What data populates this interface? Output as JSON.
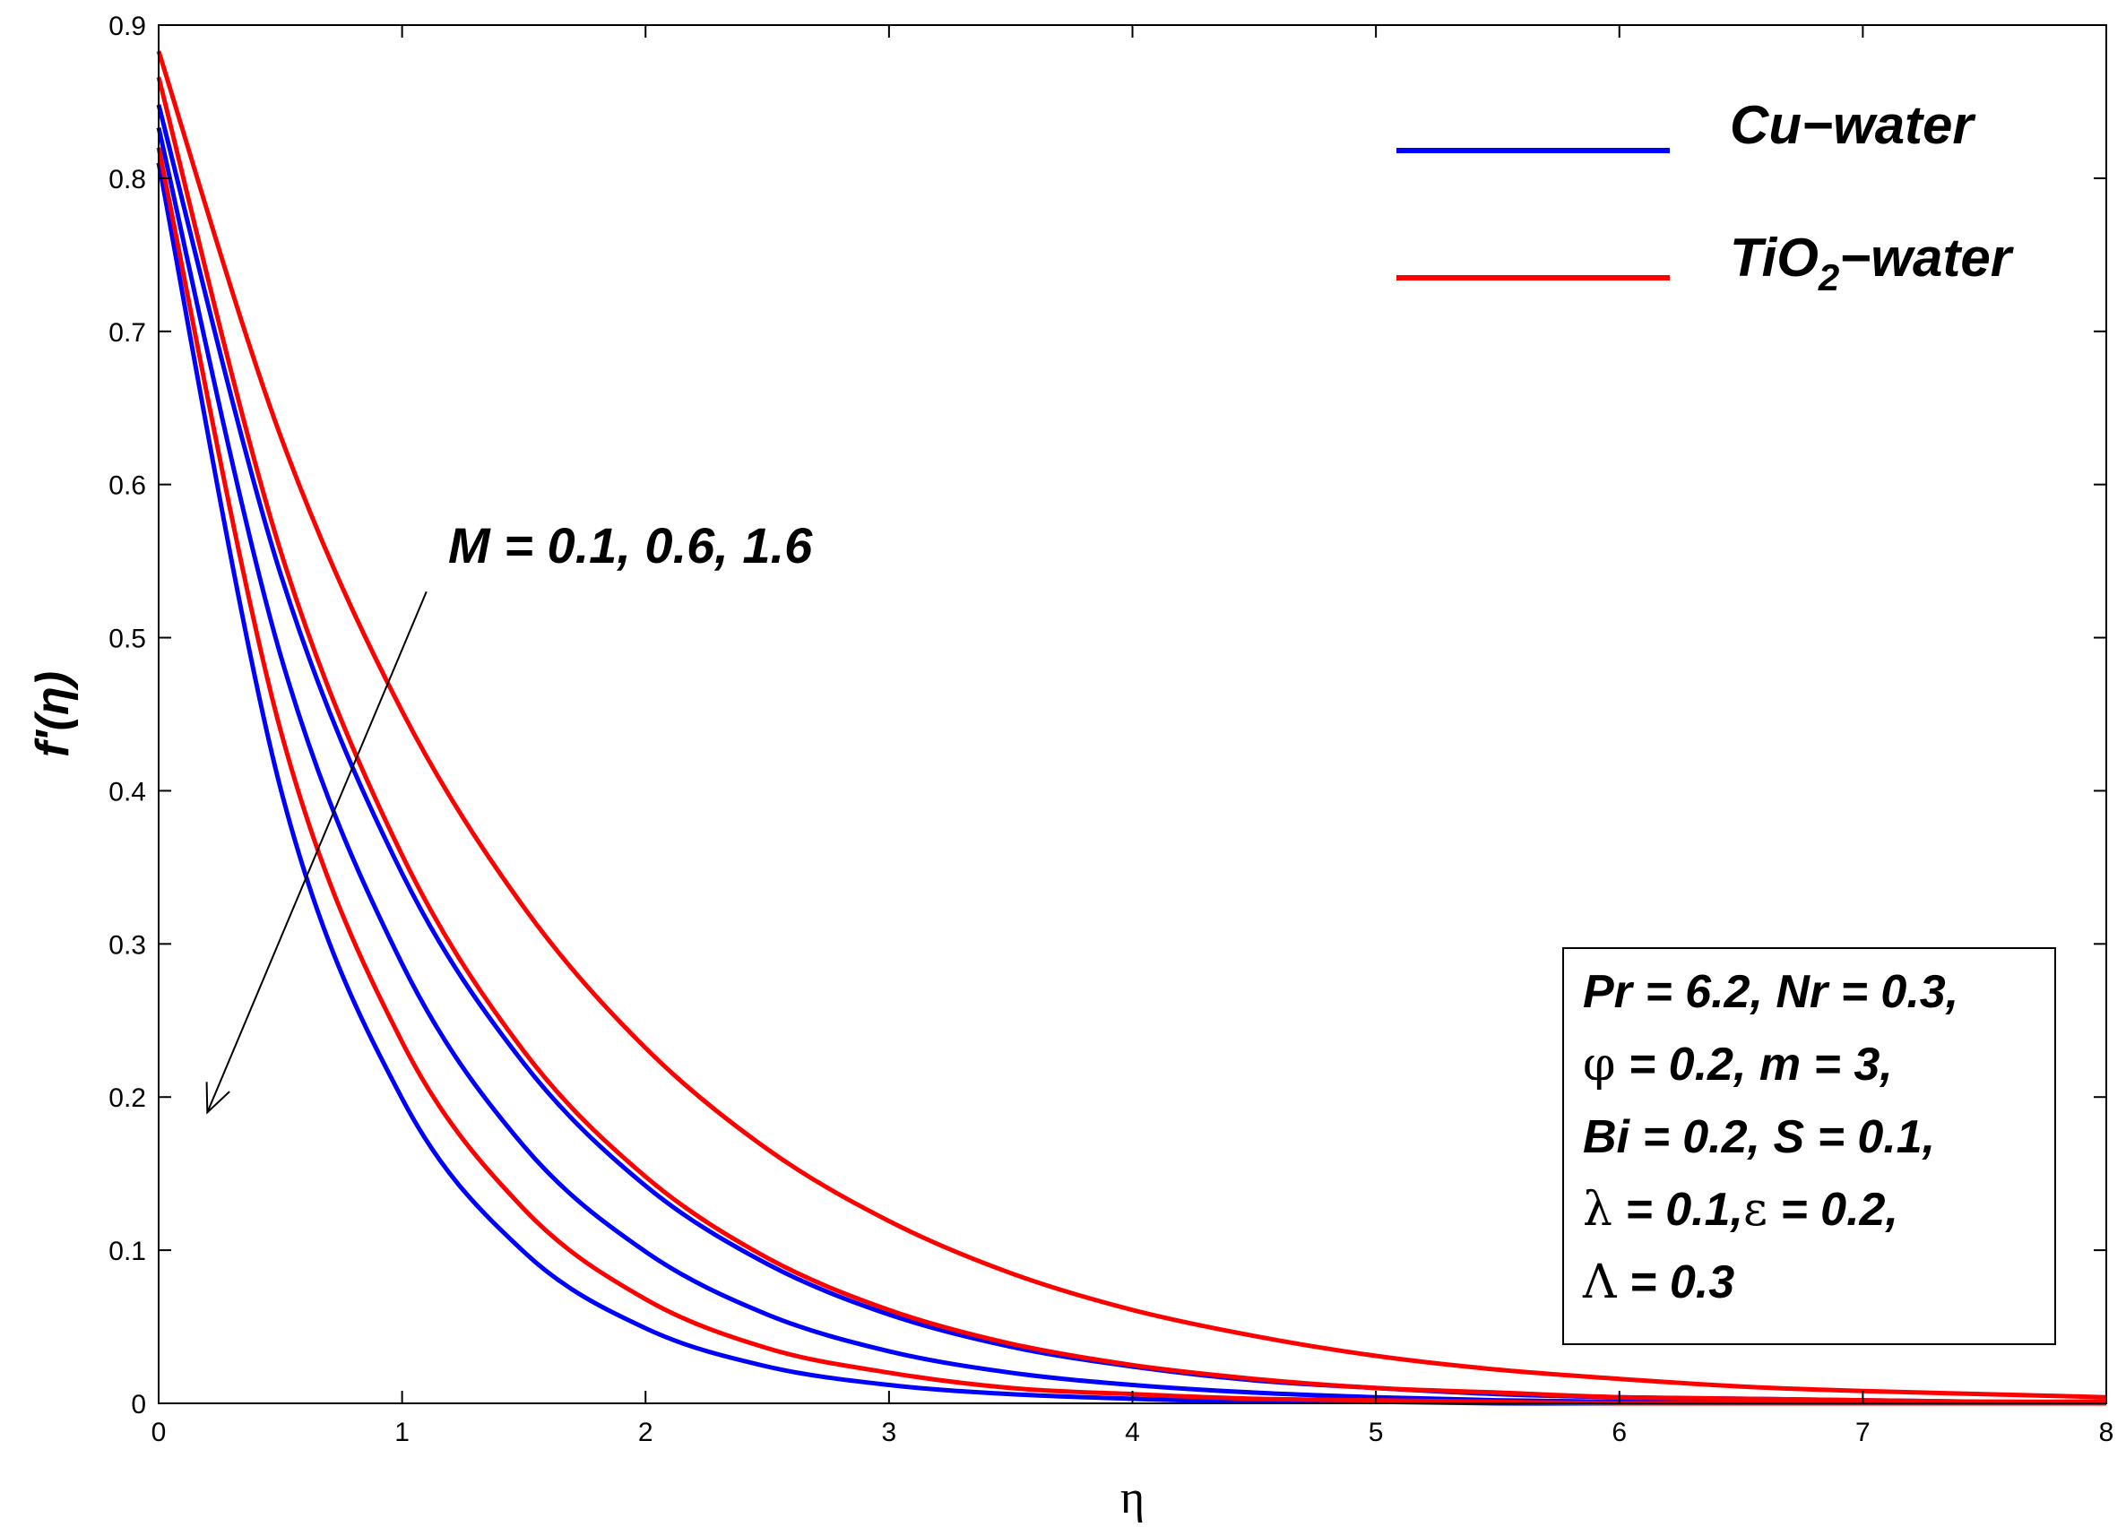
{
  "chart_data": {
    "type": "line",
    "xlabel": "η",
    "ylabel": "f'(η)",
    "xlim": [
      0,
      8
    ],
    "ylim": [
      0,
      0.9
    ],
    "x_ticks": [
      "0",
      "1",
      "2",
      "3",
      "4",
      "5",
      "6",
      "7",
      "8"
    ],
    "y_ticks": [
      "0",
      "0.1",
      "0.2",
      "0.3",
      "0.4",
      "0.5",
      "0.6",
      "0.7",
      "0.8",
      "0.9"
    ],
    "x": [
      0,
      0.5,
      1,
      1.5,
      2,
      2.5,
      3,
      3.5,
      4,
      4.5,
      5,
      5.5,
      6,
      6.5,
      7,
      7.5,
      8
    ],
    "series": [
      {
        "name": "Cu-water, M = 0.1",
        "fluid": "Cu-water",
        "M": "0.1",
        "color": "#0000ff",
        "values": [
          0.848,
          0.542,
          0.346,
          0.222,
          0.142,
          0.091,
          0.058,
          0.037,
          0.024,
          0.015,
          0.01,
          0.006,
          0.004,
          0.003,
          0.002,
          0.001,
          0.001
        ]
      },
      {
        "name": "Cu-water, M = 0.6",
        "fluid": "Cu-water",
        "M": "0.6",
        "color": "#0000ff",
        "values": [
          0.833,
          0.489,
          0.287,
          0.168,
          0.099,
          0.058,
          0.034,
          0.02,
          0.012,
          0.007,
          0.004,
          0.002,
          0.001,
          0.001,
          0.0,
          0.0,
          0.0
        ]
      },
      {
        "name": "Cu-water, M = 1.6",
        "fluid": "Cu-water",
        "M": "1.6",
        "color": "#0000ff",
        "values": [
          0.81,
          0.402,
          0.199,
          0.099,
          0.049,
          0.024,
          0.012,
          0.006,
          0.003,
          0.001,
          0.001,
          0.0,
          0.0,
          0.0,
          0.0,
          0.0,
          0.0
        ]
      },
      {
        "name": "TiO2-water, M = 0.1",
        "fluid": "TiO2-water",
        "M": "0.1",
        "color": "#ff0000",
        "values": [
          0.883,
          0.632,
          0.452,
          0.324,
          0.232,
          0.166,
          0.119,
          0.085,
          0.061,
          0.044,
          0.031,
          0.022,
          0.016,
          0.011,
          0.008,
          0.006,
          0.004
        ]
      },
      {
        "name": "TiO2-water, M = 0.6",
        "fluid": "TiO2-water",
        "M": "0.6",
        "color": "#ff0000",
        "values": [
          0.866,
          0.557,
          0.358,
          0.23,
          0.148,
          0.095,
          0.061,
          0.039,
          0.025,
          0.016,
          0.01,
          0.007,
          0.004,
          0.003,
          0.002,
          0.001,
          0.001
        ]
      },
      {
        "name": "TiO2-water, M = 1.6",
        "fluid": "TiO2-water",
        "M": "1.6",
        "color": "#ff0000",
        "values": [
          0.82,
          0.44,
          0.236,
          0.127,
          0.068,
          0.036,
          0.02,
          0.01,
          0.006,
          0.003,
          0.002,
          0.001,
          0.0,
          0.0,
          0.0,
          0.0,
          0.0
        ]
      }
    ],
    "legend": {
      "placement": "top-right",
      "entries": [
        {
          "label": "Cu−water",
          "color": "#0000ff"
        },
        {
          "label_main": "TiO",
          "label_sub": "2",
          "label_rest": "−water",
          "color": "#ff0000"
        }
      ]
    },
    "annotation": {
      "text": "M = 0.1, 0.6, 1.6",
      "arrow_from": [
        1.1,
        0.53
      ],
      "arrow_to": [
        0.2,
        0.19
      ]
    },
    "param_box": {
      "lines": [
        {
          "sym": "",
          "text": "Pr = 6.2, Nr = 0.3,"
        },
        {
          "sym": "φ",
          "text": " = 0.2, m = 3,"
        },
        {
          "sym": "",
          "text": "Bi = 0.2, S = 0.1,"
        },
        {
          "sym": "λ",
          "text": " = 0.1,",
          "sym2": "ε",
          "text2": " = 0.2,"
        },
        {
          "sym": "Λ",
          "text": " = 0.3"
        }
      ]
    }
  }
}
